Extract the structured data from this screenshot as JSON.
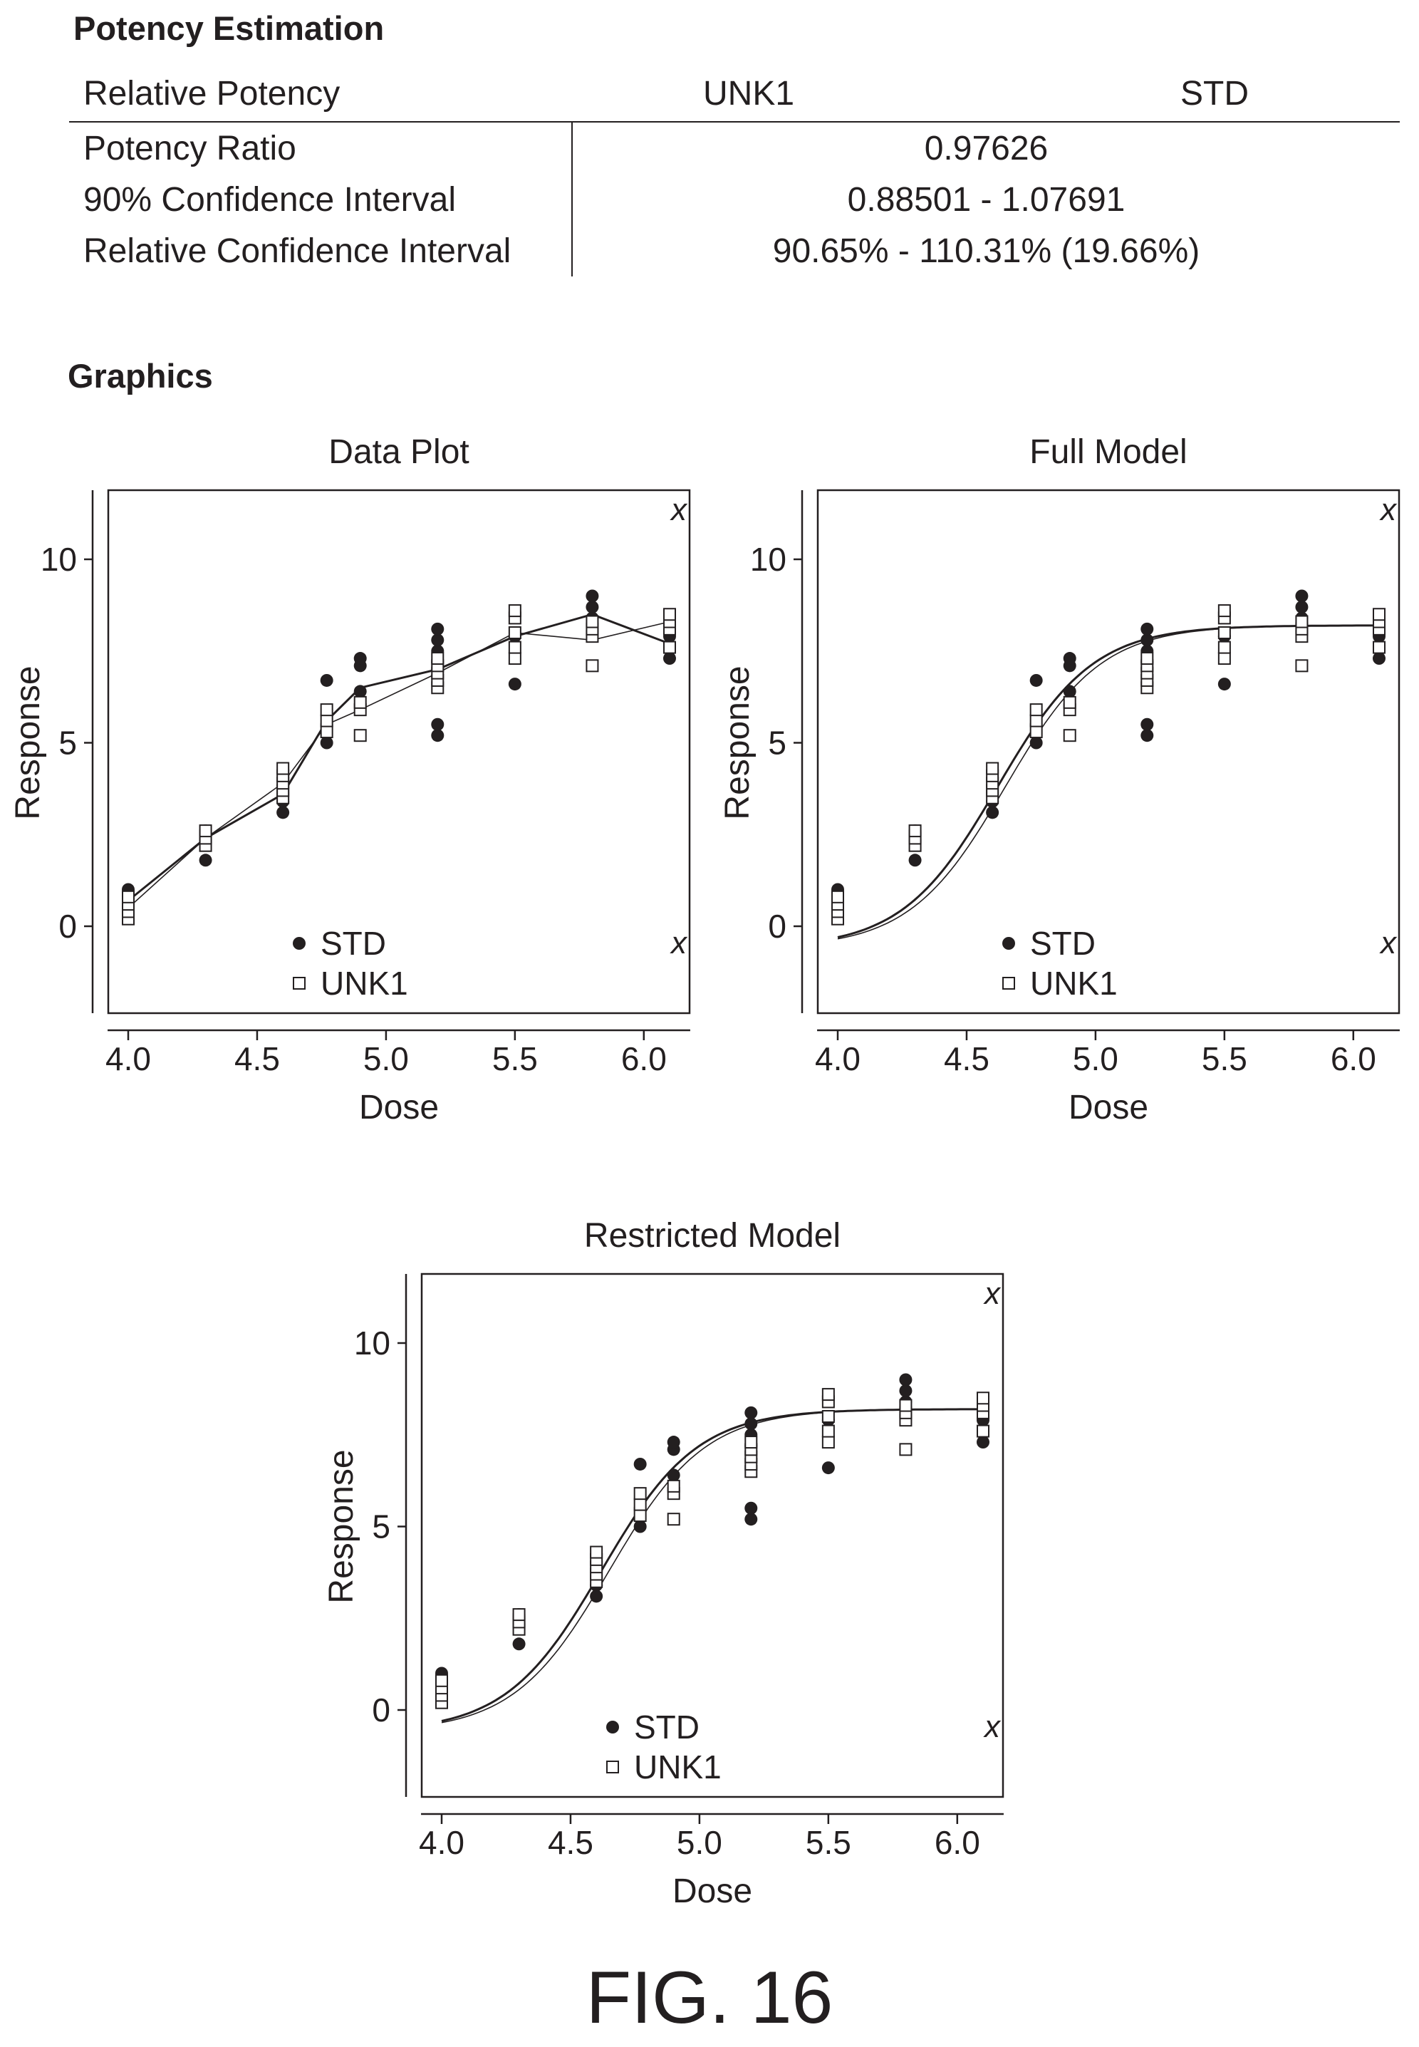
{
  "potency": {
    "title": "Potency Estimation",
    "header": {
      "label": "Relative Potency",
      "col1": "UNK1",
      "col2": "STD"
    },
    "rows": [
      {
        "label": "Potency Ratio",
        "value": "0.97626"
      },
      {
        "label": "90% Confidence Interval",
        "value": "0.88501 - 1.07691"
      },
      {
        "label": "Relative Confidence Interval",
        "value": "90.65% - 110.31% (19.66%)"
      }
    ]
  },
  "graphics_title": "Graphics",
  "figure_label": "FIG. 16",
  "corner_marker": "x",
  "chart_data": [
    {
      "type": "scatter",
      "title": "Data Plot",
      "xlabel": "Dose",
      "ylabel": "Response",
      "xlim": [
        3.92,
        6.18
      ],
      "ylim": [
        -1.8,
        12.4
      ],
      "xticks": [
        "4.0",
        "4.5",
        "5.0",
        "5.5",
        "6.0"
      ],
      "yticks": [
        "0",
        "5",
        "10"
      ],
      "legend": [
        "STD",
        "UNK1"
      ],
      "legend_position": "bottom-center",
      "fit": "connected-means",
      "series": [
        {
          "name": "STD",
          "marker": "filled-circle",
          "points": [
            [
              4.0,
              1.0
            ],
            [
              4.0,
              0.75
            ],
            [
              4.0,
              0.5
            ],
            [
              4.3,
              1.8
            ],
            [
              4.3,
              2.4
            ],
            [
              4.3,
              2.6
            ],
            [
              4.6,
              3.1
            ],
            [
              4.6,
              3.4
            ],
            [
              4.6,
              3.7
            ],
            [
              4.77,
              5.0
            ],
            [
              4.77,
              5.5
            ],
            [
              4.77,
              6.7
            ],
            [
              4.9,
              6.4
            ],
            [
              4.9,
              7.1
            ],
            [
              4.9,
              7.3
            ],
            [
              5.2,
              5.2
            ],
            [
              5.2,
              5.5
            ],
            [
              5.2,
              7.2
            ],
            [
              5.2,
              7.5
            ],
            [
              5.2,
              7.8
            ],
            [
              5.2,
              8.1
            ],
            [
              5.5,
              6.6
            ],
            [
              5.5,
              7.9
            ],
            [
              5.8,
              8.1
            ],
            [
              5.8,
              8.4
            ],
            [
              5.8,
              8.7
            ],
            [
              5.8,
              9.0
            ],
            [
              6.1,
              7.3
            ],
            [
              6.1,
              7.6
            ],
            [
              6.1,
              7.9
            ],
            [
              6.1,
              8.1
            ]
          ],
          "means": [
            [
              4.0,
              0.7
            ],
            [
              4.3,
              2.4
            ],
            [
              4.6,
              3.6
            ],
            [
              4.77,
              5.6
            ],
            [
              4.9,
              6.5
            ],
            [
              5.2,
              7.0
            ],
            [
              5.5,
              7.9
            ],
            [
              5.8,
              8.5
            ],
            [
              6.1,
              7.7
            ]
          ]
        },
        {
          "name": "UNK1",
          "marker": "open-square",
          "points": [
            [
              4.0,
              0.2
            ],
            [
              4.0,
              0.4
            ],
            [
              4.0,
              0.6
            ],
            [
              4.0,
              0.8
            ],
            [
              4.3,
              2.2
            ],
            [
              4.3,
              2.4
            ],
            [
              4.3,
              2.6
            ],
            [
              4.6,
              3.5
            ],
            [
              4.6,
              3.7
            ],
            [
              4.6,
              3.9
            ],
            [
              4.6,
              4.1
            ],
            [
              4.6,
              4.3
            ],
            [
              4.77,
              5.3
            ],
            [
              4.77,
              5.6
            ],
            [
              4.77,
              5.9
            ],
            [
              4.9,
              5.2
            ],
            [
              4.9,
              5.9
            ],
            [
              4.9,
              6.1
            ],
            [
              5.2,
              6.5
            ],
            [
              5.2,
              6.7
            ],
            [
              5.2,
              6.9
            ],
            [
              5.2,
              7.1
            ],
            [
              5.2,
              7.3
            ],
            [
              5.5,
              7.3
            ],
            [
              5.5,
              7.6
            ],
            [
              5.5,
              8.0
            ],
            [
              5.5,
              8.4
            ],
            [
              5.5,
              8.6
            ],
            [
              5.8,
              7.1
            ],
            [
              5.8,
              7.9
            ],
            [
              5.8,
              8.1
            ],
            [
              5.8,
              8.3
            ],
            [
              6.1,
              7.6
            ],
            [
              6.1,
              8.1
            ],
            [
              6.1,
              8.3
            ],
            [
              6.1,
              8.5
            ]
          ],
          "means": [
            [
              4.0,
              0.5
            ],
            [
              4.3,
              2.4
            ],
            [
              4.6,
              3.9
            ],
            [
              4.77,
              5.5
            ],
            [
              4.9,
              5.9
            ],
            [
              5.2,
              6.9
            ],
            [
              5.5,
              8.0
            ],
            [
              5.8,
              7.8
            ],
            [
              6.1,
              8.3
            ]
          ]
        }
      ]
    },
    {
      "type": "scatter",
      "title": "Full Model",
      "xlabel": "Dose",
      "ylabel": "Response",
      "xlim": [
        3.92,
        6.18
      ],
      "ylim": [
        -1.8,
        12.4
      ],
      "xticks": [
        "4.0",
        "4.5",
        "5.0",
        "5.5",
        "6.0"
      ],
      "yticks": [
        "0",
        "5",
        "10"
      ],
      "legend": [
        "STD",
        "UNK1"
      ],
      "legend_position": "bottom-center",
      "fit": "logistic",
      "curves": [
        {
          "series": "STD",
          "bottom": -0.6,
          "top": 8.2,
          "mid": 4.62,
          "slope": 5.4
        },
        {
          "series": "UNK1",
          "bottom": -0.6,
          "top": 8.2,
          "mid": 4.65,
          "slope": 5.4
        }
      ]
    },
    {
      "type": "scatter",
      "title": "Restricted Model",
      "xlabel": "Dose",
      "ylabel": "Response",
      "xlim": [
        3.92,
        6.18
      ],
      "ylim": [
        -1.8,
        12.4
      ],
      "xticks": [
        "4.0",
        "4.5",
        "5.0",
        "5.5",
        "6.0"
      ],
      "yticks": [
        "0",
        "5",
        "10"
      ],
      "legend": [
        "STD",
        "UNK1"
      ],
      "legend_position": "bottom-center",
      "fit": "logistic",
      "curves": [
        {
          "series": "STD",
          "bottom": -0.6,
          "top": 8.2,
          "mid": 4.62,
          "slope": 5.4
        },
        {
          "series": "UNK1",
          "bottom": -0.6,
          "top": 8.2,
          "mid": 4.65,
          "slope": 5.4
        }
      ]
    }
  ]
}
